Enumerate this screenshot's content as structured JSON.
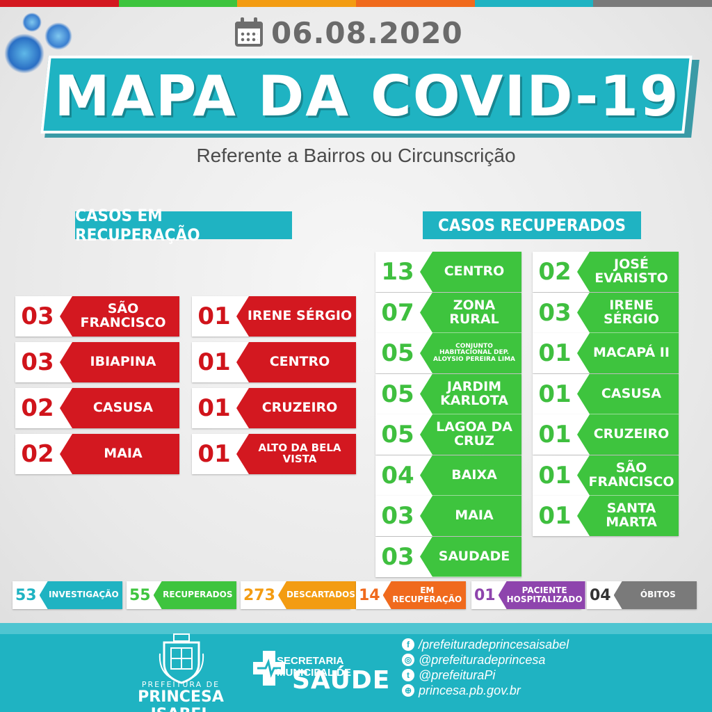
{
  "colors": {
    "teal": "#1fb3c2",
    "red": "#d31820",
    "green": "#3ec43e",
    "orange": "#f39c12",
    "dark_orange": "#f06a1d",
    "purple": "#8e44ad",
    "gray": "#7a7a7a"
  },
  "header": {
    "date": "06.08.2020",
    "date_icon": "calendar-icon",
    "title": "MAPA DA COVID-19",
    "subtitle": "Referente a Bairros ou Circunscrição"
  },
  "recovering": {
    "title": "CASOS EM RECUPERAÇÃO",
    "col1": [
      {
        "count": "03",
        "name": "SÃO FRANCISCO"
      },
      {
        "count": "03",
        "name": "IBIAPINA"
      },
      {
        "count": "02",
        "name": "CASUSA"
      },
      {
        "count": "02",
        "name": "MAIA"
      }
    ],
    "col2": [
      {
        "count": "01",
        "name": "IRENE SÉRGIO"
      },
      {
        "count": "01",
        "name": "CENTRO"
      },
      {
        "count": "01",
        "name": "CRUZEIRO"
      },
      {
        "count": "01",
        "name": "ALTO DA BELA VISTA"
      }
    ]
  },
  "recovered": {
    "title": "CASOS RECUPERADOS",
    "col1": [
      {
        "count": "13",
        "name": "CENTRO"
      },
      {
        "count": "07",
        "name": "ZONA RURAL"
      },
      {
        "count": "05",
        "name": "CONJUNTO HABITACIONAL DEP. ALOYSIO PEREIRA LIMA"
      },
      {
        "count": "05",
        "name": "JARDIM KARLOTA"
      },
      {
        "count": "05",
        "name": "LAGOA DA CRUZ"
      },
      {
        "count": "04",
        "name": "BAIXA"
      },
      {
        "count": "03",
        "name": "MAIA"
      },
      {
        "count": "03",
        "name": "SAUDADE"
      }
    ],
    "col2": [
      {
        "count": "02",
        "name": "JOSÉ EVARISTO"
      },
      {
        "count": "03",
        "name": "IRENE SÉRGIO"
      },
      {
        "count": "01",
        "name": "MACAPÁ II"
      },
      {
        "count": "01",
        "name": "CASUSA"
      },
      {
        "count": "01",
        "name": "CRUZEIRO"
      },
      {
        "count": "01",
        "name": "SÃO FRANCISCO"
      },
      {
        "count": "01",
        "name": "SANTA MARTA"
      }
    ]
  },
  "summary": [
    {
      "count": "53",
      "label": "INVESTIGAÇÃO"
    },
    {
      "count": "55",
      "label": "RECUPERADOS"
    },
    {
      "count": "273",
      "label": "DESCARTADOS"
    },
    {
      "count": "14",
      "label": "EM RECUPERAÇÃO"
    },
    {
      "count": "01",
      "label": "PACIENTE HOSPITALIZADO"
    },
    {
      "count": "04",
      "label": "ÓBITOS"
    }
  ],
  "footer": {
    "pref_small": "PREFEITURA DE",
    "pref_big": "PRINCESA ISABEL",
    "sec_line1": "SECRETARIA MUNICIPAL DE",
    "sec_line2": "SAÚDE",
    "social": [
      {
        "icon": "facebook-icon",
        "glyph": "f",
        "text": "/prefeituradeprincesaisabel"
      },
      {
        "icon": "instagram-icon",
        "glyph": "◎",
        "text": "@prefeituradeprincesa"
      },
      {
        "icon": "twitter-icon",
        "glyph": "t",
        "text": "@prefeituraPi"
      },
      {
        "icon": "globe-icon",
        "glyph": "⊕",
        "text": "princesa.pb.gov.br"
      }
    ]
  }
}
